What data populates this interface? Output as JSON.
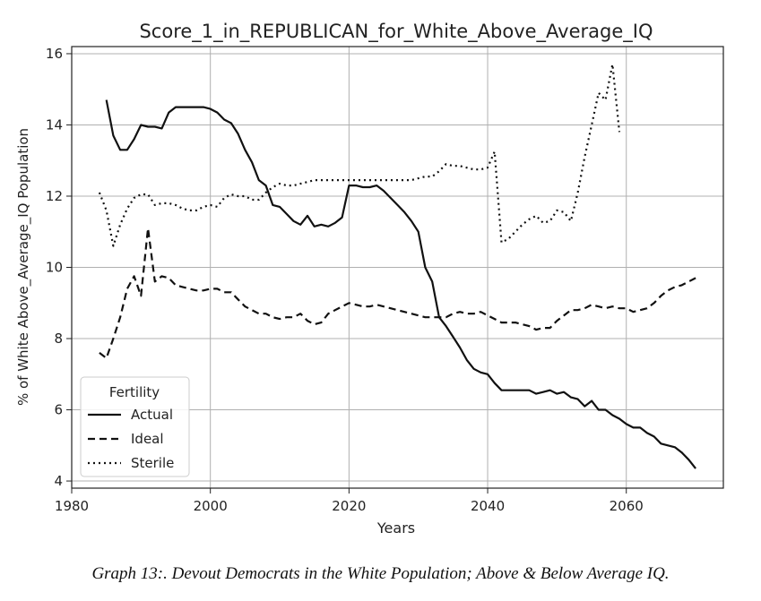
{
  "chart_data": {
    "type": "line",
    "title": "Score_1_in_REPUBLICAN_for_White_Above_Average_IQ",
    "xlabel": "Years",
    "ylabel": "% of White Above_Average_IQ Population",
    "xlim": [
      1980,
      2074
    ],
    "ylim": [
      3.8,
      16.2
    ],
    "xticks": [
      1980,
      2000,
      2020,
      2040,
      2060
    ],
    "yticks": [
      4,
      6,
      8,
      10,
      12,
      14,
      16
    ],
    "grid": true,
    "legend": {
      "title": "Fertility",
      "placement": "lower-left"
    },
    "series": [
      {
        "name": "Actual",
        "style": "solid",
        "x": [
          1985,
          1986,
          1987,
          1988,
          1989,
          1990,
          1991,
          1992,
          1993,
          1994,
          1995,
          1996,
          1997,
          1998,
          1999,
          2000,
          2001,
          2002,
          2003,
          2004,
          2005,
          2006,
          2007,
          2008,
          2009,
          2010,
          2011,
          2012,
          2013,
          2014,
          2015,
          2016,
          2017,
          2018,
          2019,
          2020,
          2021,
          2022,
          2023,
          2024,
          2025,
          2026,
          2027,
          2028,
          2029,
          2030,
          2031,
          2032,
          2033,
          2034,
          2035,
          2036,
          2037,
          2038,
          2039,
          2040,
          2041,
          2042,
          2043,
          2044,
          2045,
          2046,
          2047,
          2048,
          2049,
          2050,
          2051,
          2052,
          2053,
          2054,
          2055,
          2056,
          2057,
          2058,
          2059,
          2060,
          2061,
          2062,
          2063,
          2064,
          2065,
          2066,
          2067,
          2068,
          2069,
          2070
        ],
        "values": [
          14.7,
          13.7,
          13.3,
          13.3,
          13.6,
          14.0,
          13.95,
          13.95,
          13.9,
          14.35,
          14.5,
          14.5,
          14.5,
          14.5,
          14.5,
          14.45,
          14.35,
          14.15,
          14.05,
          13.75,
          13.3,
          12.95,
          12.45,
          12.3,
          11.75,
          11.7,
          11.5,
          11.3,
          11.2,
          11.45,
          11.15,
          11.2,
          11.15,
          11.25,
          11.4,
          12.3,
          12.3,
          12.25,
          12.25,
          12.3,
          12.15,
          11.95,
          11.75,
          11.55,
          11.3,
          11.0,
          10.0,
          9.6,
          8.6,
          8.35,
          8.05,
          7.75,
          7.4,
          7.15,
          7.05,
          7.0,
          6.75,
          6.55,
          6.55,
          6.55,
          6.55,
          6.55,
          6.45,
          6.5,
          6.55,
          6.45,
          6.5,
          6.35,
          6.3,
          6.1,
          6.25,
          6.0,
          6.0,
          5.85,
          5.75,
          5.6,
          5.5,
          5.5,
          5.35,
          5.25,
          5.05,
          5.0,
          4.95,
          4.8,
          4.6,
          4.35
        ]
      },
      {
        "name": "Ideal",
        "style": "dashed",
        "x": [
          1984,
          1985,
          1986,
          1987,
          1988,
          1989,
          1990,
          1991,
          1992,
          1993,
          1994,
          1995,
          1996,
          1997,
          1998,
          1999,
          2000,
          2001,
          2002,
          2003,
          2004,
          2005,
          2006,
          2007,
          2008,
          2009,
          2010,
          2011,
          2012,
          2013,
          2014,
          2015,
          2016,
          2017,
          2018,
          2019,
          2020,
          2021,
          2022,
          2023,
          2024,
          2025,
          2026,
          2027,
          2028,
          2029,
          2030,
          2031,
          2032,
          2033,
          2034,
          2035,
          2036,
          2037,
          2038,
          2039,
          2040,
          2041,
          2042,
          2043,
          2044,
          2045,
          2046,
          2047,
          2048,
          2049,
          2050,
          2051,
          2052,
          2053,
          2054,
          2055,
          2056,
          2057,
          2058,
          2059,
          2060,
          2061,
          2062,
          2063,
          2064,
          2065,
          2066,
          2067,
          2068,
          2069,
          2070
        ],
        "values": [
          7.6,
          7.45,
          8.0,
          8.6,
          9.4,
          9.75,
          9.2,
          11.1,
          9.6,
          9.75,
          9.7,
          9.5,
          9.45,
          9.4,
          9.35,
          9.35,
          9.4,
          9.4,
          9.3,
          9.3,
          9.1,
          8.9,
          8.8,
          8.7,
          8.7,
          8.6,
          8.55,
          8.6,
          8.6,
          8.7,
          8.5,
          8.4,
          8.45,
          8.7,
          8.8,
          8.9,
          9.0,
          8.95,
          8.9,
          8.9,
          8.95,
          8.9,
          8.85,
          8.8,
          8.75,
          8.7,
          8.65,
          8.6,
          8.6,
          8.6,
          8.6,
          8.7,
          8.75,
          8.7,
          8.7,
          8.75,
          8.65,
          8.55,
          8.45,
          8.45,
          8.45,
          8.4,
          8.35,
          8.25,
          8.3,
          8.3,
          8.5,
          8.65,
          8.8,
          8.8,
          8.85,
          8.95,
          8.9,
          8.85,
          8.9,
          8.85,
          8.85,
          8.75,
          8.8,
          8.85,
          9.0,
          9.2,
          9.35,
          9.45,
          9.5,
          9.6,
          9.7
        ]
      },
      {
        "name": "Sterile",
        "style": "dotted",
        "x": [
          1984,
          1985,
          1986,
          1987,
          1988,
          1989,
          1990,
          1991,
          1992,
          1993,
          1994,
          1995,
          1996,
          1997,
          1998,
          1999,
          2000,
          2001,
          2002,
          2003,
          2004,
          2005,
          2006,
          2007,
          2008,
          2009,
          2010,
          2011,
          2012,
          2013,
          2014,
          2015,
          2016,
          2017,
          2018,
          2019,
          2020,
          2021,
          2022,
          2023,
          2024,
          2025,
          2026,
          2027,
          2028,
          2029,
          2030,
          2031,
          2032,
          2033,
          2034,
          2035,
          2036,
          2037,
          2038,
          2039,
          2040,
          2041,
          2042,
          2043,
          2044,
          2045,
          2046,
          2047,
          2048,
          2049,
          2050,
          2051,
          2052,
          2053,
          2054,
          2055,
          2056,
          2057,
          2058,
          2059
        ],
        "values": [
          12.1,
          11.6,
          10.6,
          11.2,
          11.65,
          11.95,
          12.05,
          12.05,
          11.75,
          11.8,
          11.8,
          11.75,
          11.65,
          11.6,
          11.6,
          11.7,
          11.75,
          11.7,
          11.95,
          12.05,
          12.0,
          12.0,
          11.9,
          11.9,
          12.1,
          12.25,
          12.35,
          12.3,
          12.3,
          12.35,
          12.4,
          12.45,
          12.45,
          12.45,
          12.45,
          12.45,
          12.45,
          12.45,
          12.45,
          12.45,
          12.45,
          12.45,
          12.45,
          12.45,
          12.45,
          12.45,
          12.5,
          12.55,
          12.55,
          12.7,
          12.9,
          12.85,
          12.85,
          12.8,
          12.75,
          12.75,
          12.8,
          13.25,
          10.7,
          10.8,
          11.0,
          11.2,
          11.35,
          11.45,
          11.25,
          11.3,
          11.6,
          11.55,
          11.3,
          12.1,
          13.1,
          14.0,
          14.9,
          14.7,
          15.7,
          13.8
        ]
      }
    ]
  },
  "caption": "Graph 13:. Devout Democrats in the White Population; Above & Below Average IQ."
}
